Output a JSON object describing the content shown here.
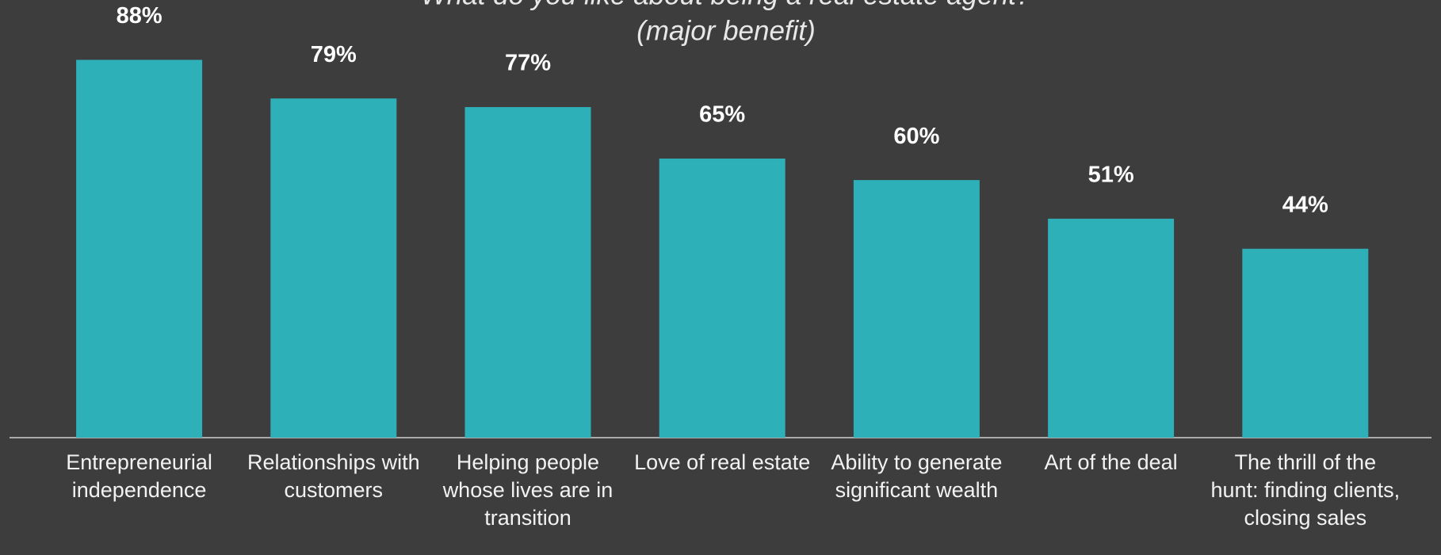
{
  "chart_data": {
    "type": "bar",
    "title": "What do you like about being a real estate agent?",
    "subtitle": "(major benefit)",
    "categories": [
      "Entrepreneurial independence",
      "Relationships with customers",
      "Helping people whose lives are in transition",
      "Love of real estate",
      "Ability to generate significant wealth",
      "Art of the deal",
      "The thrill of the hunt: finding clients, closing sales"
    ],
    "values": [
      88,
      79,
      77,
      65,
      60,
      51,
      44
    ],
    "value_labels": [
      "88%",
      "79%",
      "77%",
      "65%",
      "60%",
      "51%",
      "44%"
    ],
    "color": "#2db0b8"
  }
}
